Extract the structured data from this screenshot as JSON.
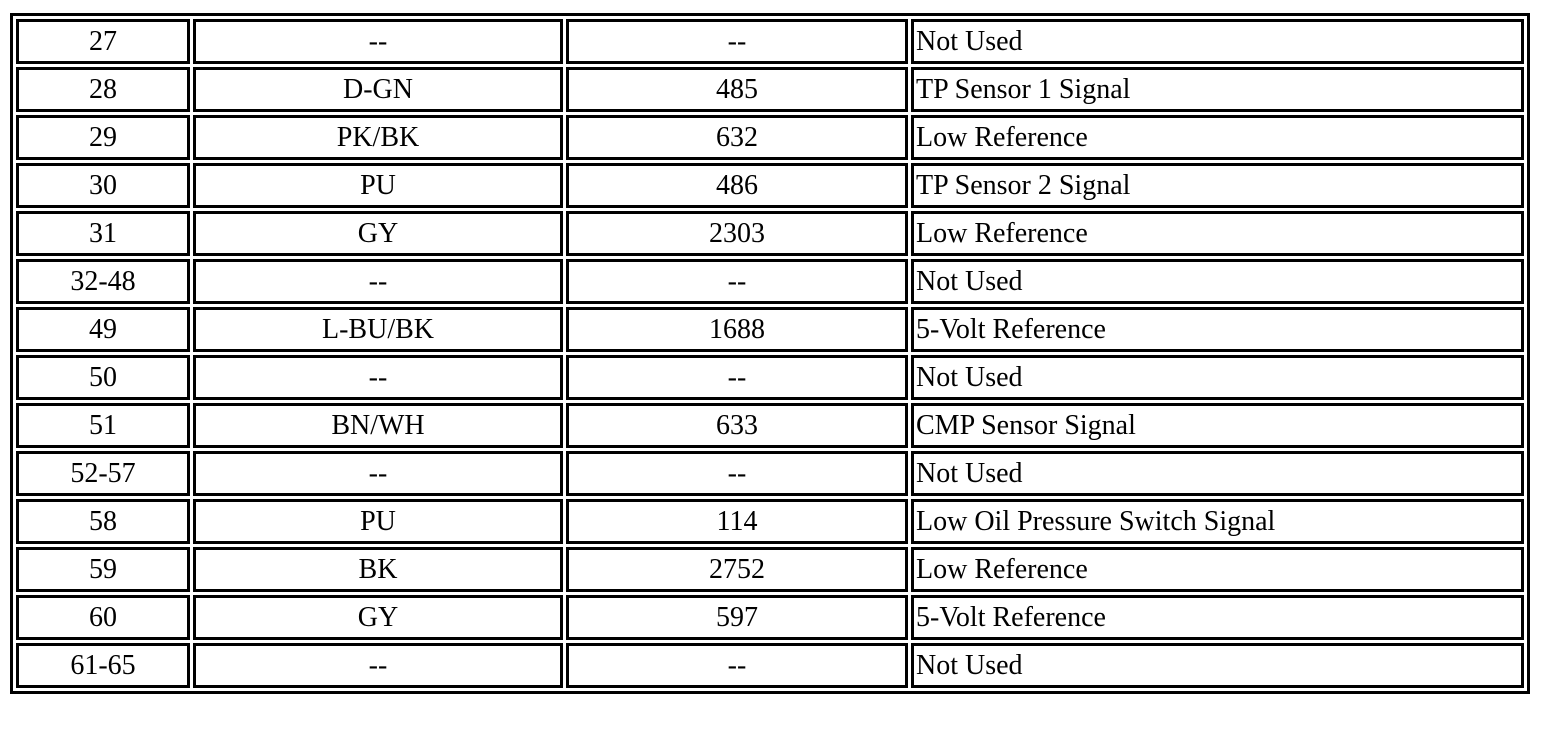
{
  "rows": [
    {
      "pin": "27",
      "color": "--",
      "circuit": "--",
      "function": "Not Used"
    },
    {
      "pin": "28",
      "color": "D-GN",
      "circuit": "485",
      "function": "TP Sensor 1 Signal"
    },
    {
      "pin": "29",
      "color": "PK/BK",
      "circuit": "632",
      "function": "Low Reference"
    },
    {
      "pin": "30",
      "color": "PU",
      "circuit": "486",
      "function": "TP Sensor 2 Signal"
    },
    {
      "pin": "31",
      "color": "GY",
      "circuit": "2303",
      "function": "Low Reference"
    },
    {
      "pin": "32-48",
      "color": "--",
      "circuit": "--",
      "function": "Not Used"
    },
    {
      "pin": "49",
      "color": "L-BU/BK",
      "circuit": "1688",
      "function": "5-Volt Reference"
    },
    {
      "pin": "50",
      "color": "--",
      "circuit": "--",
      "function": "Not Used"
    },
    {
      "pin": "51",
      "color": "BN/WH",
      "circuit": "633",
      "function": "CMP Sensor Signal"
    },
    {
      "pin": "52-57",
      "color": "--",
      "circuit": "--",
      "function": "Not Used"
    },
    {
      "pin": "58",
      "color": "PU",
      "circuit": "114",
      "function": "Low Oil Pressure Switch Signal"
    },
    {
      "pin": "59",
      "color": "BK",
      "circuit": "2752",
      "function": "Low Reference"
    },
    {
      "pin": "60",
      "color": "GY",
      "circuit": "597",
      "function": "5-Volt Reference"
    },
    {
      "pin": "61-65",
      "color": "--",
      "circuit": "--",
      "function": "Not Used"
    }
  ]
}
